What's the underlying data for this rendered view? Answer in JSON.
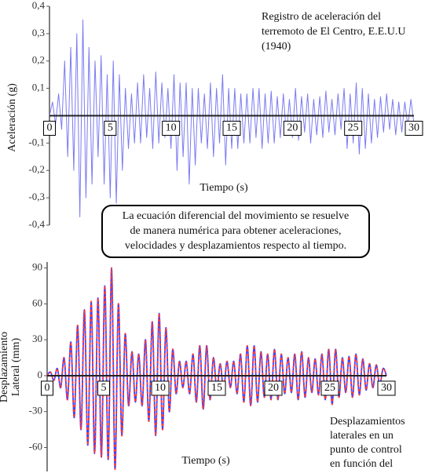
{
  "chart_data": [
    {
      "type": "line",
      "ylabel": "Aceleración (g)",
      "xlabel": "Tiempo (s)",
      "annotation": [
        "Registro de aceleración del",
        "terremoto de El Centro, E.E.U.U",
        "(1940)"
      ],
      "xlim": [
        0,
        30
      ],
      "xticks": [
        0,
        5,
        10,
        15,
        20,
        25,
        30
      ],
      "ylim": [
        -0.4,
        0.4
      ],
      "yticks": [
        {
          "value": 0.4,
          "label": "0,4"
        },
        {
          "value": 0.3,
          "label": "0,3"
        },
        {
          "value": 0.2,
          "label": "0,2"
        },
        {
          "value": 0.1,
          "label": "0,1"
        },
        {
          "value": -0.1,
          "label": "-0,1"
        },
        {
          "value": -0.2,
          "label": "-0,2"
        },
        {
          "value": -0.3,
          "label": "-0,3"
        },
        {
          "value": -0.4,
          "label": "-0,4"
        }
      ],
      "grid": false,
      "x": [
        0,
        0.25,
        0.5,
        0.75,
        1,
        1.25,
        1.5,
        1.75,
        2,
        2.25,
        2.5,
        2.75,
        3,
        3.25,
        3.5,
        3.75,
        4,
        4.25,
        4.5,
        4.75,
        5,
        5.25,
        5.5,
        5.75,
        6,
        6.25,
        6.5,
        6.75,
        7,
        7.25,
        7.5,
        7.75,
        8,
        8.25,
        8.5,
        8.75,
        9,
        9.25,
        9.5,
        9.75,
        10,
        10.25,
        10.5,
        10.75,
        11,
        11.25,
        11.5,
        11.75,
        12,
        12.25,
        12.5,
        12.75,
        13,
        13.25,
        13.5,
        13.75,
        14,
        14.25,
        14.5,
        14.75,
        15,
        15.25,
        15.5,
        15.75,
        16,
        16.25,
        16.5,
        16.75,
        17,
        17.25,
        17.5,
        17.75,
        18,
        18.25,
        18.5,
        18.75,
        19,
        19.25,
        19.5,
        19.75,
        20,
        20.25,
        20.5,
        20.75,
        21,
        21.25,
        21.5,
        21.75,
        22,
        22.25,
        22.5,
        22.75,
        23,
        23.25,
        23.5,
        23.75,
        24,
        24.25,
        24.5,
        24.75,
        25,
        25.25,
        25.5,
        25.75,
        26,
        26.25,
        26.5,
        26.75,
        27,
        27.25,
        27.5,
        27.75,
        28,
        28.25,
        28.5,
        28.75,
        29,
        29.25,
        29.5,
        29.75,
        30
      ],
      "series": [
        {
          "color": "#7b7bf2",
          "values": [
            0,
            0.05,
            -0.03,
            0.08,
            -0.05,
            0.2,
            -0.15,
            0.25,
            -0.2,
            0.3,
            -0.37,
            0.35,
            -0.3,
            0.25,
            -0.25,
            0.2,
            -0.15,
            0.22,
            -0.25,
            0.15,
            -0.3,
            0.2,
            -0.32,
            0.15,
            -0.2,
            0.1,
            -0.12,
            0.08,
            -0.1,
            0.12,
            -0.1,
            0.15,
            -0.08,
            0.1,
            -0.12,
            0.16,
            -0.1,
            0.12,
            -0.08,
            0.1,
            -0.12,
            0.15,
            -0.2,
            0.12,
            -0.15,
            0.12,
            -0.25,
            0.1,
            -0.18,
            0.1,
            -0.1,
            0.08,
            -0.12,
            0.12,
            -0.15,
            0.1,
            -0.1,
            0.15,
            -0.18,
            0.1,
            -0.12,
            0.1,
            -0.12,
            0.08,
            -0.1,
            0.08,
            -0.1,
            0.1,
            -0.08,
            0.1,
            -0.12,
            0.08,
            -0.1,
            0.09,
            -0.1,
            0.07,
            -0.08,
            0.08,
            -0.07,
            0.06,
            -0.08,
            0.1,
            -0.09,
            0.07,
            -0.06,
            0.08,
            -0.1,
            0.06,
            -0.07,
            0.07,
            -0.08,
            0.09,
            -0.06,
            0.06,
            -0.07,
            0.08,
            -0.05,
            0.1,
            -0.12,
            0.08,
            -0.1,
            0.12,
            -0.14,
            0.1,
            -0.12,
            0.08,
            -0.1,
            0.06,
            -0.08,
            0.07,
            -0.06,
            0.08,
            -0.05,
            0.06,
            -0.07,
            0.05,
            -0.06,
            0.05,
            -0.04,
            0.06,
            -0.03
          ]
        }
      ]
    },
    {
      "type": "line",
      "ylabel": [
        "Desplazamiento",
        "Lateral (mm)"
      ],
      "xlabel": "Tiempo (s)",
      "annotation": [
        "Desplazamientos",
        "laterales en un",
        "punto de control",
        "en función del"
      ],
      "xlim": [
        0,
        30
      ],
      "xticks": [
        0,
        5,
        10,
        15,
        20,
        25,
        30
      ],
      "ylim": [
        -80,
        95
      ],
      "yticks": [
        90,
        60,
        30,
        0,
        -30,
        -60
      ],
      "grid": false,
      "smooth": true,
      "x": [
        0,
        0.3,
        0.6,
        0.9,
        1.2,
        1.5,
        1.8,
        2.1,
        2.4,
        2.7,
        3,
        3.3,
        3.6,
        3.9,
        4.2,
        4.5,
        4.8,
        5.1,
        5.4,
        5.7,
        6,
        6.3,
        6.6,
        6.9,
        7.2,
        7.5,
        7.8,
        8.1,
        8.4,
        8.7,
        9,
        9.3,
        9.6,
        9.9,
        10.2,
        10.5,
        10.8,
        11.1,
        11.4,
        11.7,
        12,
        12.3,
        12.6,
        12.9,
        13.2,
        13.5,
        13.8,
        14.1,
        14.4,
        14.7,
        15,
        15.3,
        15.6,
        15.9,
        16.2,
        16.5,
        16.8,
        17.1,
        17.4,
        17.7,
        18,
        18.3,
        18.6,
        18.9,
        19.2,
        19.5,
        19.8,
        20.1,
        20.4,
        20.7,
        21,
        21.3,
        21.6,
        21.9,
        22.2,
        22.5,
        22.8,
        23.1,
        23.4,
        23.7,
        24,
        24.3,
        24.6,
        24.9,
        25.2,
        25.5,
        25.8,
        26.1,
        26.4,
        26.7,
        27,
        27.3,
        27.6,
        27.9,
        28.2,
        28.5,
        28.8,
        29.1,
        29.4,
        29.7,
        30
      ],
      "series": [
        {
          "color": "#4040ff",
          "values": [
            0,
            3,
            -4,
            6,
            -10,
            15,
            -20,
            28,
            -35,
            42,
            -45,
            55,
            -58,
            62,
            -65,
            65,
            -68,
            75,
            -70,
            90,
            -78,
            60,
            -50,
            35,
            -25,
            20,
            -22,
            18,
            -25,
            30,
            -38,
            45,
            -50,
            52,
            -45,
            40,
            -30,
            22,
            -15,
            12,
            -10,
            12,
            -15,
            18,
            -22,
            25,
            -28,
            25,
            -20,
            15,
            -12,
            10,
            -12,
            12,
            -10,
            12,
            -15,
            18,
            -22,
            25,
            -25,
            25,
            -22,
            20,
            -18,
            18,
            -20,
            22,
            -20,
            18,
            -15,
            15,
            -14,
            18,
            -20,
            20,
            -18,
            15,
            -14,
            14,
            -16,
            18,
            -20,
            22,
            -24,
            22,
            -18,
            15,
            -14,
            16,
            -18,
            18,
            -16,
            14,
            -12,
            10,
            -10,
            9,
            -8,
            6,
            0
          ]
        },
        {
          "color": "#ff3b3b",
          "dashed": true,
          "values": [
            0,
            3,
            -4,
            6,
            -10,
            15,
            -20,
            28,
            -35,
            42,
            -45,
            55,
            -58,
            62,
            -65,
            65,
            -68,
            75,
            -70,
            90,
            -78,
            60,
            -50,
            35,
            -25,
            20,
            -22,
            18,
            -25,
            30,
            -38,
            45,
            -50,
            52,
            -45,
            40,
            -30,
            22,
            -15,
            12,
            -10,
            12,
            -15,
            18,
            -22,
            25,
            -28,
            25,
            -20,
            15,
            -12,
            10,
            -12,
            12,
            -10,
            12,
            -15,
            18,
            -22,
            25,
            -25,
            25,
            -22,
            20,
            -18,
            18,
            -20,
            22,
            -20,
            18,
            -15,
            15,
            -14,
            18,
            -20,
            20,
            -18,
            15,
            -14,
            14,
            -16,
            18,
            -20,
            22,
            -24,
            22,
            -18,
            15,
            -14,
            16,
            -18,
            18,
            -16,
            14,
            -12,
            10,
            -10,
            9,
            -8,
            6,
            0
          ]
        }
      ]
    }
  ],
  "note": [
    "La ecuación diferencial del movimiento se resuelve",
    "de manera numérica para obtener aceleraciones,",
    "velocidades y desplazamientos respecto al tiempo."
  ]
}
